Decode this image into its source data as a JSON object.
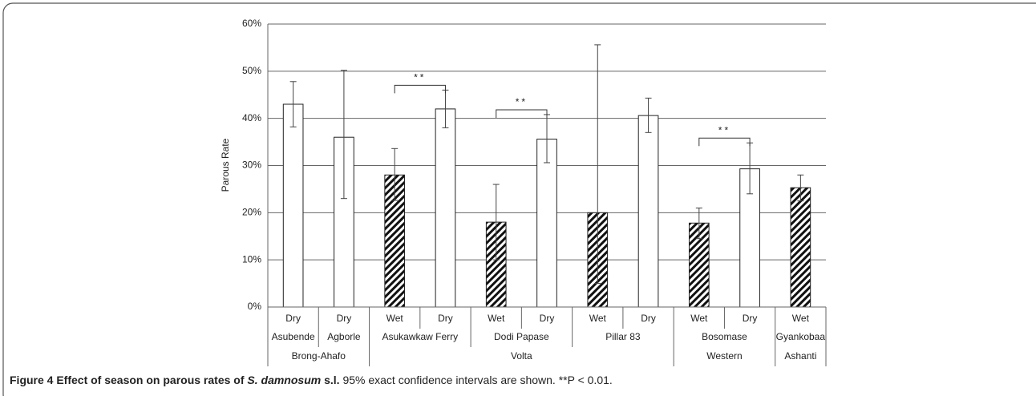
{
  "chart_data": {
    "type": "bar",
    "y_label": "Parous Rate",
    "categories": [
      "Dry",
      "Dry",
      "Wet",
      "Dry",
      "Wet",
      "Dry",
      "Wet",
      "Dry",
      "Wet",
      "Dry",
      "Wet"
    ],
    "sites": [
      "Asubende",
      "Agborle",
      "Asukawkaw Ferry",
      null,
      "Dodi Papase",
      null,
      "Pillar 83",
      null,
      "Bosomase",
      null,
      "Gyankobaa"
    ],
    "regions": [
      "Brong-Ahafo",
      null,
      "Volta",
      null,
      null,
      null,
      null,
      null,
      "Western",
      null,
      "Ashanti"
    ],
    "values": [
      43,
      36,
      28,
      42,
      18,
      35.6,
      20,
      40.6,
      17.8,
      29.3,
      25.3
    ],
    "ci_low": [
      38.2,
      23,
      22.6,
      38,
      10,
      30.6,
      5,
      37,
      14.5,
      24,
      22.5
    ],
    "ci_high": [
      47.8,
      50.2,
      33.6,
      46,
      26,
      40.8,
      55.6,
      44.3,
      21,
      34.8,
      28
    ],
    "fills": [
      "white",
      "white",
      "hatch",
      "white",
      "hatch",
      "white",
      "hatch",
      "white",
      "hatch",
      "white",
      "hatch"
    ],
    "significance": [
      {
        "label": "**",
        "site": "Asukawkaw Ferry"
      },
      {
        "label": "**",
        "site": "Dodi Papase"
      },
      {
        "label": "**",
        "site": "Bosomase"
      }
    ],
    "ylim": [
      0,
      60
    ],
    "yticks": [
      {
        "value": 0,
        "label": "0%"
      },
      {
        "value": 10,
        "label": "10%"
      },
      {
        "value": 20,
        "label": "20%"
      },
      {
        "value": 30,
        "label": "30%"
      },
      {
        "value": 40,
        "label": "40%"
      },
      {
        "value": 50,
        "label": "50%"
      },
      {
        "value": 60,
        "label": "60%"
      }
    ],
    "grid": true
  },
  "caption": {
    "bold": "Figure 4 Effect of season on parous rates of",
    "bold_italic": "S. damnosum",
    "bold_end": "s.l.",
    "text": "95% exact confidence intervals are shown. **P < 0.01."
  }
}
